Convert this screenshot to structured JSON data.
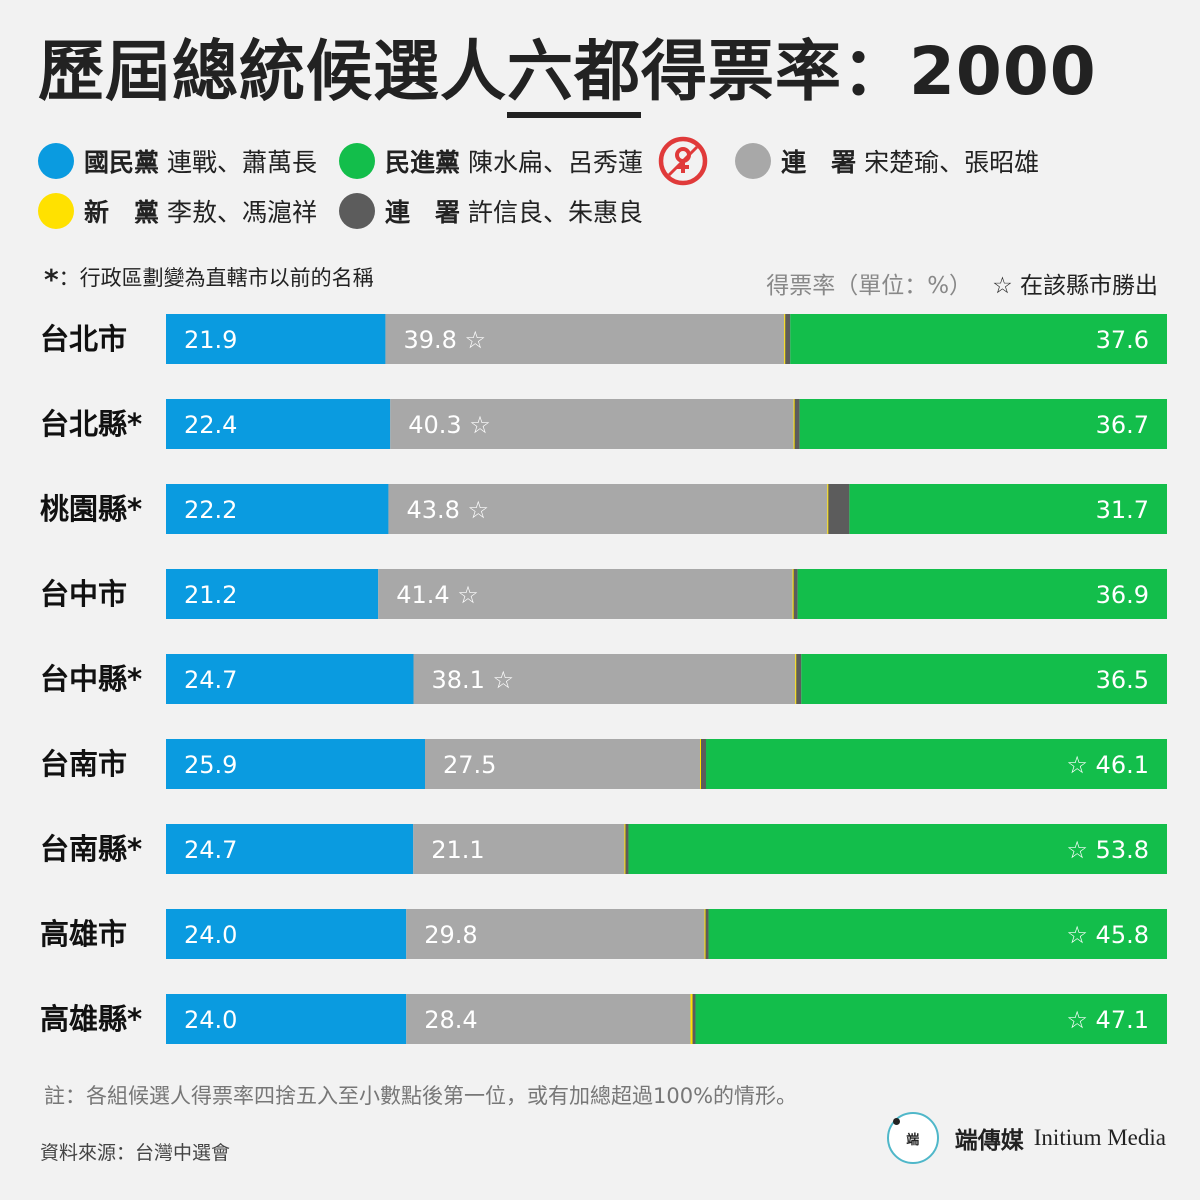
{
  "title": {
    "pre": "歷屆總統候選人",
    "highlight": "六都",
    "post": "得票率：2000"
  },
  "legend": [
    {
      "party": "國民黨",
      "candidates": "連戰、蕭萬長",
      "color": "#0a9be0",
      "icon": "none"
    },
    {
      "party": "民進黨",
      "candidates": "陳水扁、呂秀蓮",
      "color": "#13be4b",
      "icon": "ballot-icon"
    },
    {
      "party": "連　署",
      "candidates": "宋楚瑜、張昭雄",
      "color": "#a8a8a8",
      "icon": "none"
    },
    {
      "party": "新　黨",
      "candidates": "李敖、馮滬祥",
      "color": "#ffe100",
      "icon": "none"
    },
    {
      "party": "連　署",
      "candidates": "許信良、朱惠良",
      "color": "#5c5c5c",
      "icon": "none"
    }
  ],
  "note": {
    "asterisk": "*",
    "text": "：行政區劃變為直轄市以前的名稱"
  },
  "unit_label": "得票率（單位：%）",
  "winner_label": "☆ 在該縣市勝出",
  "footnote": "註：各組候選人得票率四捨五入至小數點後第一位，或有加總超過100%的情形。",
  "source": "資料來源：台灣中選會",
  "brand": {
    "zh": "端傳媒",
    "en": "Initium Media",
    "logo": "端"
  },
  "chart_data": {
    "type": "bar",
    "orientation": "horizontal",
    "stacked": true,
    "xlim": [
      0,
      100
    ],
    "categories": [
      "台北市",
      "台北縣*",
      "桃園縣*",
      "台中市",
      "台中縣*",
      "台南市",
      "台南縣*",
      "高雄市",
      "高雄縣*"
    ],
    "series": [
      {
        "name": "國民黨 連戰、蕭萬長",
        "color": "#0a9be0",
        "values": [
          21.9,
          22.4,
          22.2,
          21.2,
          24.7,
          25.9,
          24.7,
          24.0,
          24.0
        ],
        "labeled": true
      },
      {
        "name": "連署 宋楚瑜、張昭雄",
        "color": "#a8a8a8",
        "values": [
          39.8,
          40.3,
          43.8,
          41.4,
          38.1,
          27.5,
          21.1,
          29.8,
          28.4
        ],
        "labeled": true
      },
      {
        "name": "新黨 李敖、馮滬祥",
        "color": "#ffe100",
        "values": [
          0.1,
          0.1,
          0.1,
          0.1,
          0.1,
          0.1,
          0.1,
          0.1,
          0.2
        ],
        "labeled": false
      },
      {
        "name": "連署 許信良、朱惠良",
        "color": "#5c5c5c",
        "values": [
          0.5,
          0.5,
          2.1,
          0.4,
          0.5,
          0.5,
          0.3,
          0.3,
          0.3
        ],
        "labeled": false
      },
      {
        "name": "民進黨 陳水扁、呂秀蓮",
        "color": "#13be4b",
        "values": [
          37.6,
          36.7,
          31.7,
          36.9,
          36.5,
          46.1,
          53.8,
          45.8,
          47.1
        ],
        "labeled": true
      }
    ],
    "winners": [
      "連署 宋楚瑜、張昭雄",
      "連署 宋楚瑜、張昭雄",
      "連署 宋楚瑜、張昭雄",
      "連署 宋楚瑜、張昭雄",
      "連署 宋楚瑜、張昭雄",
      "民進黨 陳水扁、呂秀蓮",
      "民進黨 陳水扁、呂秀蓮",
      "民進黨 陳水扁、呂秀蓮",
      "民進黨 陳水扁、呂秀蓮"
    ],
    "star_symbol": "☆"
  }
}
